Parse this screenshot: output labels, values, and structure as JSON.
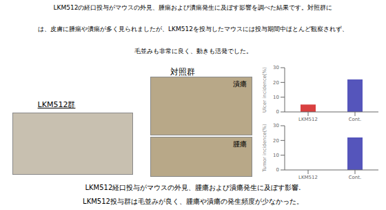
{
  "chart_data": [
    {
      "type": "bar",
      "categories": [
        "LKM512",
        "Cont."
      ],
      "values": [
        5,
        22
      ],
      "colors": [
        "#d94040",
        "#5555bb"
      ],
      "ylabel": "Ulcer incidence(%)",
      "ylim": [
        0,
        30
      ],
      "yticks": [
        0,
        10,
        20,
        30
      ],
      "grid": false,
      "annotations": [
        "LKM512の経口投与がマウスの外見、腫瘍および潰瘍発生に及ぼす影響を調べた結果です。対照群に",
        "は、皮膚に腫瘍や潰瘍が多く見られましたが、LKM512を投与したマウスには投与期間中ほとんど観察されず、",
        "毛並みも非常に良く、動きも活発でした。",
        "対照群",
        "LKM512群",
        "潰瘍",
        "腫瘍",
        "LKM512経口投与がマウスの外見、腫瘍および潰瘍発生に及ぼす影響.",
        "LKM512投与群は毛並みが良く、腫瘍や潰瘍の発生頻度が少なかった。"
      ]
    },
    {
      "type": "bar",
      "categories": [
        "LKM512",
        "Cont."
      ],
      "values": [
        0,
        22
      ],
      "colors": [
        "#d94040",
        "#5555bb"
      ],
      "ylabel": "Tumor incidence(%)",
      "ylim": [
        0,
        30
      ],
      "yticks": [
        0,
        10,
        20,
        30
      ],
      "grid": false
    }
  ]
}
